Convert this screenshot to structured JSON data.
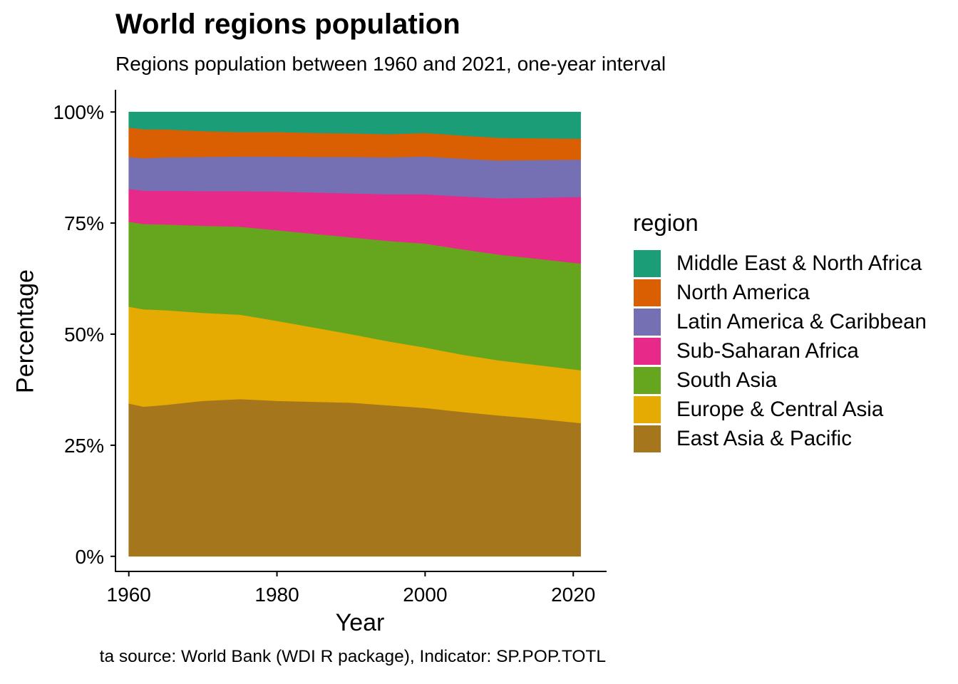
{
  "chart_data": {
    "type": "area",
    "stacked": "percent",
    "title": "World regions population",
    "subtitle": "Regions population between 1960 and 2021, one-year interval",
    "xlabel": "Year",
    "ylabel": "Percentage",
    "caption": "ta source: World Bank (WDI R package), Indicator: SP.POP.TOTL",
    "xlim": [
      1958.2,
      2024.5
    ],
    "ylim": [
      -0.034,
      1.05
    ],
    "x_ticks": [
      1960,
      1980,
      2000,
      2020
    ],
    "y_ticks": [
      0,
      0.25,
      0.5,
      0.75,
      1.0
    ],
    "y_tick_labels": [
      "0%",
      "25%",
      "50%",
      "75%",
      "100%"
    ],
    "x": [
      1960,
      1962,
      1965,
      1970,
      1975,
      1980,
      1985,
      1990,
      1995,
      2000,
      2005,
      2010,
      2015,
      2021
    ],
    "legend_title": "region",
    "legend_position": "right",
    "stack_order": [
      "East Asia & Pacific",
      "Europe & Central Asia",
      "South Asia",
      "Sub-Saharan Africa",
      "Latin America & Caribbean",
      "North America",
      "Middle East & North Africa"
    ],
    "series": [
      {
        "name": "East Asia & Pacific",
        "color": "#A6761D",
        "values": [
          34.4,
          33.7,
          34.1,
          35.0,
          35.4,
          35.0,
          34.8,
          34.6,
          34.0,
          33.4,
          32.5,
          31.7,
          31.0,
          30.0
        ]
      },
      {
        "name": "Europe & Central Asia",
        "color": "#E6AB02",
        "values": [
          21.8,
          21.9,
          21.3,
          19.8,
          19.0,
          18.0,
          16.7,
          15.4,
          14.4,
          13.6,
          12.9,
          12.4,
          12.1,
          11.9
        ]
      },
      {
        "name": "South Asia",
        "color": "#66A61E",
        "values": [
          19.1,
          19.2,
          19.3,
          19.6,
          19.8,
          20.4,
          21.1,
          21.8,
          22.6,
          23.4,
          23.7,
          23.8,
          23.9,
          24.0
        ]
      },
      {
        "name": "Sub-Saharan Africa",
        "color": "#E7298A",
        "values": [
          7.4,
          7.5,
          7.6,
          7.8,
          8.0,
          8.7,
          9.3,
          9.9,
          10.5,
          11.1,
          11.9,
          12.7,
          13.7,
          15.0
        ]
      },
      {
        "name": "Latin America & Caribbean",
        "color": "#7570B3",
        "values": [
          7.2,
          7.3,
          7.5,
          7.7,
          7.8,
          7.9,
          8.0,
          8.2,
          8.3,
          8.5,
          8.5,
          8.5,
          8.5,
          8.4
        ]
      },
      {
        "name": "North America",
        "color": "#D95F02",
        "values": [
          6.6,
          6.5,
          6.3,
          5.8,
          5.5,
          5.5,
          5.4,
          5.3,
          5.2,
          5.3,
          5.2,
          5.1,
          4.9,
          4.7
        ]
      },
      {
        "name": "Middle East & North Africa",
        "color": "#1B9E77",
        "values": [
          3.5,
          3.9,
          3.9,
          4.3,
          4.5,
          4.5,
          4.7,
          4.8,
          5.0,
          4.7,
          5.3,
          5.8,
          5.9,
          6.0
        ]
      }
    ]
  }
}
